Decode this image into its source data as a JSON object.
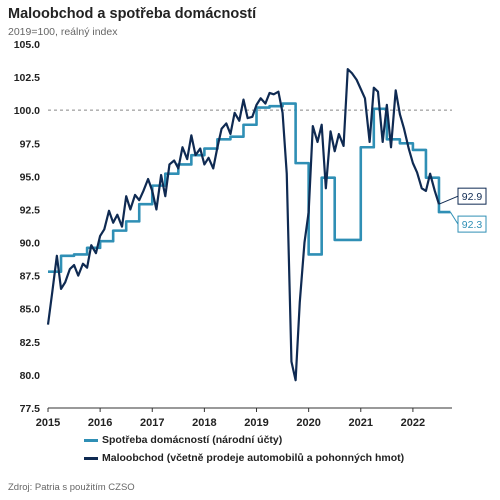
{
  "header": {
    "title": "Maloobchod a spotřeba domácností",
    "subtitle": "2019=100, reálný index"
  },
  "source": "Zdroj: Patria s použitím CZSO",
  "colors": {
    "spotreba": "#2f8fb5",
    "maloobchod": "#0f2a52",
    "reference_line": "#888888"
  },
  "chart_data": {
    "type": "line",
    "ylim": [
      77.5,
      105.0
    ],
    "yticks": [
      "77.5",
      "80.0",
      "82.5",
      "85.0",
      "87.5",
      "90.0",
      "92.5",
      "95.0",
      "97.5",
      "100.0",
      "102.5",
      "105.0"
    ],
    "xlim": [
      2015.0,
      2022.75
    ],
    "xticks": [
      "2015",
      "2016",
      "2017",
      "2018",
      "2019",
      "2020",
      "2021",
      "2022"
    ],
    "reference_line": 100.0,
    "grid": false,
    "legend_position": "bottom",
    "series": [
      {
        "name": "Spotřeba domácností (národní účty)",
        "key": "spotreba",
        "step": true,
        "end_label": "92.3",
        "x": [
          2015.0,
          2015.25,
          2015.5,
          2015.75,
          2016.0,
          2016.25,
          2016.5,
          2016.75,
          2017.0,
          2017.25,
          2017.5,
          2017.75,
          2018.0,
          2018.25,
          2018.5,
          2018.75,
          2019.0,
          2019.25,
          2019.5,
          2019.75,
          2020.0,
          2020.25,
          2020.5,
          2020.75,
          2021.0,
          2021.25,
          2021.5,
          2021.75,
          2022.0,
          2022.25,
          2022.5
        ],
        "y": [
          87.8,
          89.0,
          89.1,
          89.6,
          90.1,
          90.9,
          91.6,
          92.9,
          94.3,
          95.2,
          95.9,
          96.6,
          97.1,
          97.8,
          98.0,
          98.9,
          100.2,
          100.3,
          100.5,
          96.0,
          89.1,
          94.9,
          90.2,
          90.2,
          97.2,
          100.1,
          97.8,
          97.5,
          97.0,
          94.9,
          92.3
        ]
      },
      {
        "name": "Maloobchod (včetně prodeje automobilů a pohonných hmot)",
        "key": "maloobchod",
        "step": false,
        "end_label": "92.9",
        "x": [
          2015.0,
          2015.08,
          2015.17,
          2015.25,
          2015.33,
          2015.42,
          2015.5,
          2015.58,
          2015.67,
          2015.75,
          2015.83,
          2015.92,
          2016.0,
          2016.08,
          2016.17,
          2016.25,
          2016.33,
          2016.42,
          2016.5,
          2016.58,
          2016.67,
          2016.75,
          2016.83,
          2016.92,
          2017.0,
          2017.08,
          2017.17,
          2017.25,
          2017.33,
          2017.42,
          2017.5,
          2017.58,
          2017.67,
          2017.75,
          2017.83,
          2017.92,
          2018.0,
          2018.08,
          2018.17,
          2018.25,
          2018.33,
          2018.42,
          2018.5,
          2018.58,
          2018.67,
          2018.75,
          2018.83,
          2018.92,
          2019.0,
          2019.08,
          2019.17,
          2019.25,
          2019.33,
          2019.42,
          2019.5,
          2019.58,
          2019.67,
          2019.75,
          2019.83,
          2019.92,
          2020.0,
          2020.08,
          2020.17,
          2020.25,
          2020.33,
          2020.42,
          2020.5,
          2020.58,
          2020.67,
          2020.75,
          2020.83,
          2020.92,
          2021.0,
          2021.08,
          2021.17,
          2021.25,
          2021.33,
          2021.42,
          2021.5,
          2021.58,
          2021.67,
          2021.75,
          2021.83,
          2021.92,
          2022.0,
          2022.08,
          2022.17,
          2022.25,
          2022.33,
          2022.42,
          2022.5
        ],
        "y": [
          83.8,
          86.2,
          89.0,
          86.5,
          87.0,
          88.0,
          88.3,
          87.5,
          88.4,
          88.1,
          89.8,
          89.2,
          90.5,
          91.0,
          92.4,
          91.5,
          92.1,
          91.2,
          93.5,
          92.5,
          93.6,
          93.2,
          93.9,
          94.8,
          93.9,
          92.5,
          95.1,
          93.5,
          95.9,
          96.2,
          95.6,
          97.2,
          96.3,
          98.1,
          96.6,
          97.1,
          95.9,
          96.4,
          95.6,
          97.2,
          98.6,
          99.0,
          98.2,
          99.8,
          99.2,
          100.8,
          99.4,
          99.5,
          100.4,
          100.9,
          100.5,
          101.3,
          101.2,
          101.4,
          99.8,
          95.2,
          81.0,
          79.6,
          85.5,
          90.0,
          92.3,
          98.8,
          97.6,
          98.9,
          94.1,
          98.4,
          96.9,
          98.2,
          97.3,
          103.1,
          102.8,
          102.3,
          101.6,
          100.9,
          97.6,
          101.7,
          101.4,
          97.6,
          100.4,
          97.2,
          101.5,
          99.7,
          98.6,
          97.1,
          96.0,
          95.3,
          94.1,
          93.9,
          95.2,
          93.9,
          92.9
        ]
      }
    ]
  }
}
